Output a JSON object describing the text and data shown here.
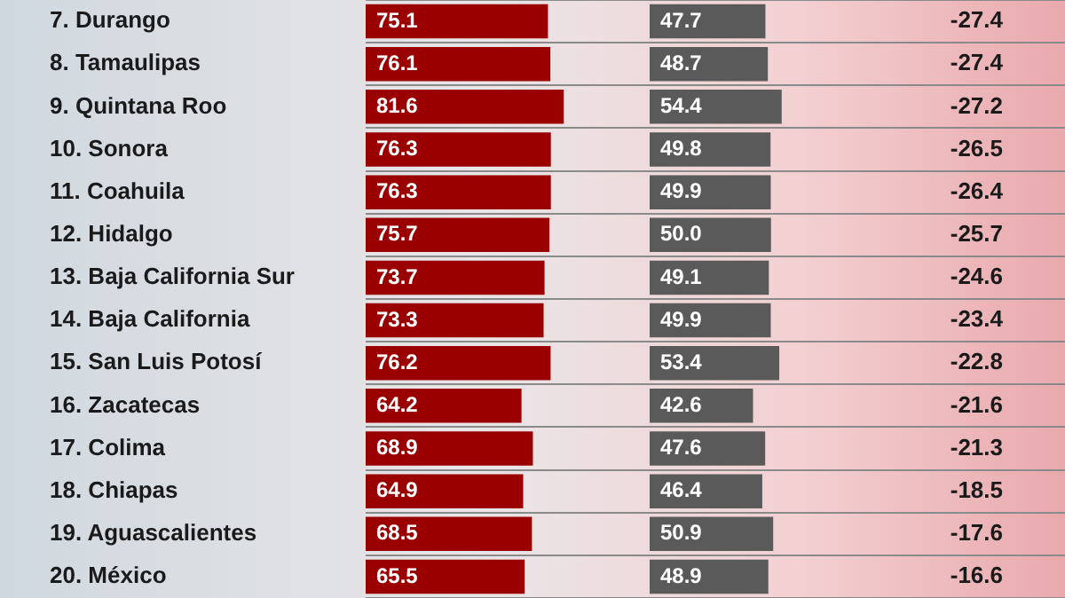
{
  "chart_data": [
    {
      "type": "bar",
      "orientation": "horizontal",
      "categories": [
        "7. Durango",
        "8. Tamaulipas",
        "9. Quintana Roo",
        "10. Sonora",
        "11. Coahuila",
        "12. Hidalgo",
        "13. Baja California Sur",
        "14. Baja California",
        "15. San Luis Potosí",
        "16. Zacatecas",
        "17. Colima",
        "18. Chiapas",
        "19. Aguascalientes",
        "20. México"
      ],
      "series": [
        {
          "color": "#9b0000",
          "values": [
            75.1,
            76.1,
            81.6,
            76.3,
            76.3,
            75.7,
            73.7,
            73.3,
            76.2,
            64.2,
            68.9,
            64.9,
            68.5,
            65.5
          ]
        }
      ],
      "xlim": [
        0,
        117
      ],
      "grid": "y",
      "data_labels": true,
      "tick_labels": "y"
    },
    {
      "type": "bar",
      "orientation": "horizontal",
      "categories": [
        null,
        null,
        null,
        null,
        null,
        null,
        null,
        null,
        null,
        null,
        null,
        null,
        null,
        null
      ],
      "series": [
        {
          "color": "#5a5a5a",
          "values": [
            47.7,
            48.7,
            54.4,
            49.8,
            49.9,
            50.0,
            49.1,
            49.9,
            53.4,
            42.6,
            47.6,
            46.4,
            50.9,
            48.9
          ],
          "value_labels": [
            "47.7",
            "48.7",
            "54.4",
            "49.8",
            "49.9",
            "50.0",
            "49.1",
            "49.9",
            "53.4",
            "42.6",
            "47.6",
            "46.4",
            "50.9",
            "48.9"
          ]
        }
      ],
      "xlim": [
        0,
        98
      ],
      "grid": "y",
      "tick_labels": false
    },
    {
      "type": "other",
      "categories": [
        null,
        null,
        null,
        null,
        null,
        null,
        null,
        null,
        null,
        null,
        null,
        null,
        null,
        null
      ],
      "values": [
        -27.4,
        -27.4,
        -27.2,
        -26.5,
        -26.4,
        -25.7,
        -24.6,
        -23.4,
        -22.8,
        -21.6,
        -21.3,
        -18.5,
        -17.6,
        -16.6
      ],
      "data_labels": true
    }
  ]
}
